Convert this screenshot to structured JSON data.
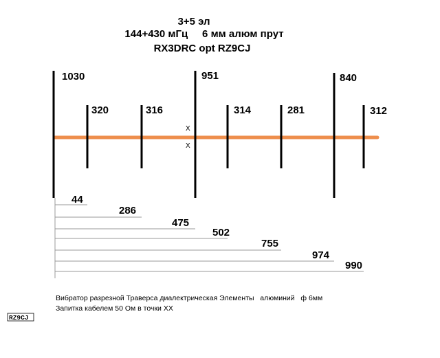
{
  "title": {
    "line1": "3+5 эл",
    "line2": "144+430 мГц     6 мм алюм прут",
    "line3": "RX3DRC opt RZ9CJ"
  },
  "colors": {
    "boom": "#ee8e4c",
    "elements": "#000000",
    "spacing_lines": "#999999"
  },
  "elements": [
    {
      "label": "1030",
      "name": "element-1030"
    },
    {
      "label": "320",
      "name": "element-320"
    },
    {
      "label": "316",
      "name": "element-316"
    },
    {
      "label": "951",
      "name": "element-951-driven"
    },
    {
      "label": "314",
      "name": "element-314"
    },
    {
      "label": "281",
      "name": "element-281"
    },
    {
      "label": "840",
      "name": "element-840"
    },
    {
      "label": "312",
      "name": "element-312"
    }
  ],
  "feed_marks": [
    "X",
    "X"
  ],
  "spacings": [
    "44",
    "286",
    "475",
    "502",
    "755",
    "974",
    "990"
  ],
  "notes": {
    "line1": "Вибратор разрезной Траверса диалектрическая Элементы   алюминий   ф 6мм",
    "line2": "Запитка кабелем 50 Ом в точки XX"
  },
  "badge": "RZ9CJ"
}
